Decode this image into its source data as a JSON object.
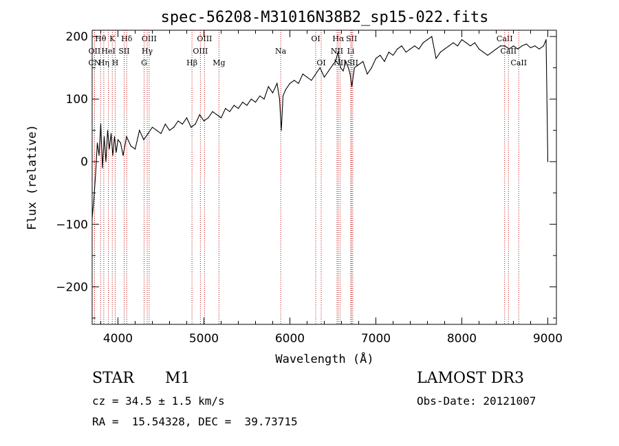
{
  "chart_data": {
    "type": "line",
    "title": "spec-56208-M31016N38B2_sp15-022.fits",
    "xlabel": "Wavelength (Å)",
    "ylabel": "Flux (relative)",
    "xlim": [
      3700,
      9100
    ],
    "ylim": [
      -260,
      210
    ],
    "x_ticks": [
      4000,
      5000,
      6000,
      7000,
      8000,
      9000
    ],
    "y_ticks": [
      -200,
      -100,
      0,
      100,
      200
    ],
    "x_tick_labels": [
      "4000",
      "5000",
      "6000",
      "7000",
      "8000",
      "9000"
    ],
    "y_tick_labels": [
      "−200",
      "−100",
      "0",
      "100",
      "200"
    ],
    "series": [
      {
        "name": "flux",
        "x": [
          3700,
          3720,
          3740,
          3760,
          3780,
          3800,
          3820,
          3840,
          3860,
          3880,
          3900,
          3920,
          3940,
          3960,
          3980,
          4000,
          4030,
          4060,
          4100,
          4150,
          4200,
          4250,
          4300,
          4350,
          4400,
          4450,
          4500,
          4550,
          4600,
          4650,
          4700,
          4750,
          4800,
          4850,
          4900,
          4950,
          5000,
          5050,
          5100,
          5150,
          5200,
          5250,
          5300,
          5350,
          5400,
          5450,
          5500,
          5550,
          5600,
          5650,
          5700,
          5750,
          5800,
          5850,
          5880,
          5900,
          5920,
          5950,
          6000,
          6050,
          6100,
          6150,
          6200,
          6250,
          6300,
          6350,
          6400,
          6450,
          6500,
          6530,
          6560,
          6590,
          6620,
          6650,
          6680,
          6700,
          6720,
          6750,
          6800,
          6850,
          6900,
          6950,
          7000,
          7050,
          7100,
          7150,
          7200,
          7250,
          7300,
          7350,
          7400,
          7450,
          7500,
          7550,
          7600,
          7650,
          7700,
          7750,
          7800,
          7850,
          7900,
          7950,
          8000,
          8050,
          8100,
          8150,
          8200,
          8250,
          8300,
          8350,
          8400,
          8450,
          8500,
          8550,
          8600,
          8650,
          8700,
          8750,
          8800,
          8850,
          8900,
          8950,
          8980,
          9000
        ],
        "values": [
          -90,
          -60,
          -20,
          30,
          10,
          60,
          -10,
          40,
          0,
          50,
          20,
          45,
          10,
          40,
          15,
          35,
          30,
          10,
          40,
          25,
          20,
          50,
          35,
          45,
          55,
          50,
          45,
          60,
          50,
          55,
          65,
          60,
          70,
          55,
          60,
          75,
          65,
          70,
          80,
          75,
          70,
          85,
          80,
          90,
          85,
          95,
          90,
          100,
          95,
          105,
          100,
          120,
          110,
          125,
          100,
          50,
          105,
          115,
          125,
          130,
          125,
          140,
          135,
          130,
          140,
          150,
          135,
          145,
          155,
          160,
          175,
          150,
          145,
          160,
          150,
          140,
          120,
          150,
          155,
          160,
          140,
          150,
          165,
          170,
          160,
          175,
          170,
          180,
          185,
          175,
          180,
          185,
          180,
          190,
          195,
          200,
          165,
          175,
          180,
          185,
          190,
          185,
          195,
          190,
          185,
          190,
          180,
          175,
          170,
          175,
          180,
          185,
          185,
          180,
          185,
          180,
          185,
          188,
          182,
          185,
          180,
          185,
          195,
          0
        ]
      }
    ],
    "spectral_lines": [
      {
        "label": "Hθ",
        "wavelength": 3798,
        "row": 1
      },
      {
        "label": "K",
        "wavelength": 3934,
        "row": 1
      },
      {
        "label": "Hδ",
        "wavelength": 4102,
        "row": 1
      },
      {
        "label": "OIII",
        "wavelength": 4363,
        "row": 1
      },
      {
        "label": "OIII",
        "wavelength": 5007,
        "row": 1
      },
      {
        "label": "OI",
        "wavelength": 6300,
        "row": 1
      },
      {
        "label": "Hα",
        "wavelength": 6563,
        "row": 1
      },
      {
        "label": "SII",
        "wavelength": 6717,
        "row": 1
      },
      {
        "label": "CaII",
        "wavelength": 8498,
        "row": 1
      },
      {
        "label": "OII",
        "wavelength": 3727,
        "row": 2
      },
      {
        "label": "HeI",
        "wavelength": 3889,
        "row": 2
      },
      {
        "label": "SII",
        "wavelength": 4072,
        "row": 2
      },
      {
        "label": "Hγ",
        "wavelength": 4340,
        "row": 2
      },
      {
        "label": "OIII",
        "wavelength": 4959,
        "row": 2
      },
      {
        "label": "Na",
        "wavelength": 5893,
        "row": 2
      },
      {
        "label": "NII",
        "wavelength": 6548,
        "row": 2
      },
      {
        "label": "Li",
        "wavelength": 6708,
        "row": 2
      },
      {
        "label": "CaII",
        "wavelength": 8542,
        "row": 2
      },
      {
        "label": "CN",
        "wavelength": 3727,
        "row": 3
      },
      {
        "label": "Hη",
        "wavelength": 3835,
        "row": 3
      },
      {
        "label": "H",
        "wavelength": 3968,
        "row": 3
      },
      {
        "label": "G",
        "wavelength": 4304,
        "row": 3
      },
      {
        "label": "Hβ",
        "wavelength": 4861,
        "row": 3
      },
      {
        "label": "Mg",
        "wavelength": 5175,
        "row": 3
      },
      {
        "label": "OI",
        "wavelength": 6364,
        "row": 3
      },
      {
        "label": "NII",
        "wavelength": 6583,
        "row": 3
      },
      {
        "label": "SII",
        "wavelength": 6731,
        "row": 3
      },
      {
        "label": "CaII",
        "wavelength": 8662,
        "row": 3
      }
    ]
  },
  "info": {
    "object_class": "STAR",
    "subclass": "M1",
    "survey": "LAMOST DR3",
    "cz": "cz = 34.5 ± 1.5 km/s",
    "obs_date": "Obs-Date: 20121007",
    "coords": "RA =  15.54328, DEC =  39.73715"
  }
}
